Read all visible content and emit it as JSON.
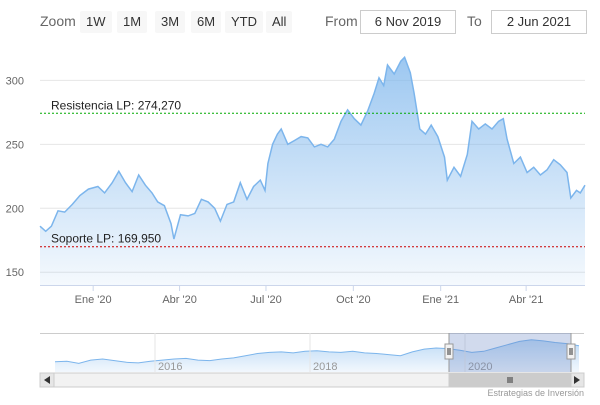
{
  "range_selector": {
    "zoom_label": "Zoom",
    "buttons": [
      "1W",
      "1M",
      "3M",
      "6M",
      "YTD",
      "All"
    ],
    "from_label": "From",
    "from_value": "6 Nov 2019",
    "to_label": "To",
    "to_value": "2 Jun 2021"
  },
  "chart_data": {
    "type": "area",
    "title": "",
    "xlabel": "",
    "ylabel": "",
    "x_range": [
      "2019-11-06",
      "2021-06-02"
    ],
    "ylim": [
      140,
      330
    ],
    "y_ticks": [
      150,
      200,
      250,
      300
    ],
    "x_tick_labels": [
      {
        "date": "2020-01-01",
        "label": "Ene '20"
      },
      {
        "date": "2020-04-01",
        "label": "Abr '20"
      },
      {
        "date": "2020-07-01",
        "label": "Jul '20"
      },
      {
        "date": "2020-10-01",
        "label": "Oct '20"
      },
      {
        "date": "2021-01-01",
        "label": "Ene '21"
      },
      {
        "date": "2021-04-01",
        "label": "Abr '21"
      }
    ],
    "grid": "horizontal",
    "series": [
      {
        "color": "#7cb5ec",
        "points": [
          [
            "2019-11-06",
            186
          ],
          [
            "2019-11-12",
            182
          ],
          [
            "2019-11-18",
            186
          ],
          [
            "2019-11-25",
            198
          ],
          [
            "2019-12-02",
            197
          ],
          [
            "2019-12-10",
            203
          ],
          [
            "2019-12-18",
            210
          ],
          [
            "2019-12-27",
            215
          ],
          [
            "2020-01-06",
            217
          ],
          [
            "2020-01-13",
            212
          ],
          [
            "2020-01-21",
            220
          ],
          [
            "2020-01-28",
            229
          ],
          [
            "2020-02-04",
            220
          ],
          [
            "2020-02-11",
            213
          ],
          [
            "2020-02-18",
            226
          ],
          [
            "2020-02-25",
            218
          ],
          [
            "2020-03-03",
            212
          ],
          [
            "2020-03-09",
            205
          ],
          [
            "2020-03-16",
            202
          ],
          [
            "2020-03-23",
            188
          ],
          [
            "2020-03-26",
            176
          ],
          [
            "2020-04-02",
            195
          ],
          [
            "2020-04-10",
            194
          ],
          [
            "2020-04-17",
            196
          ],
          [
            "2020-04-24",
            207
          ],
          [
            "2020-05-01",
            205
          ],
          [
            "2020-05-08",
            200
          ],
          [
            "2020-05-14",
            190
          ],
          [
            "2020-05-21",
            203
          ],
          [
            "2020-05-28",
            205
          ],
          [
            "2020-06-04",
            220
          ],
          [
            "2020-06-11",
            207
          ],
          [
            "2020-06-18",
            217
          ],
          [
            "2020-06-25",
            222
          ],
          [
            "2020-06-30",
            214
          ],
          [
            "2020-07-03",
            235
          ],
          [
            "2020-07-08",
            250
          ],
          [
            "2020-07-13",
            258
          ],
          [
            "2020-07-17",
            262
          ],
          [
            "2020-07-24",
            250
          ],
          [
            "2020-07-31",
            253
          ],
          [
            "2020-08-07",
            256
          ],
          [
            "2020-08-14",
            255
          ],
          [
            "2020-08-21",
            248
          ],
          [
            "2020-08-28",
            250
          ],
          [
            "2020-09-04",
            248
          ],
          [
            "2020-09-11",
            254
          ],
          [
            "2020-09-18",
            268
          ],
          [
            "2020-09-25",
            277
          ],
          [
            "2020-10-02",
            270
          ],
          [
            "2020-10-09",
            265
          ],
          [
            "2020-10-16",
            276
          ],
          [
            "2020-10-23",
            290
          ],
          [
            "2020-10-28",
            302
          ],
          [
            "2020-11-02",
            296
          ],
          [
            "2020-11-06",
            312
          ],
          [
            "2020-11-13",
            305
          ],
          [
            "2020-11-20",
            315
          ],
          [
            "2020-11-24",
            318
          ],
          [
            "2020-11-30",
            306
          ],
          [
            "2020-12-04",
            290
          ],
          [
            "2020-12-10",
            262
          ],
          [
            "2020-12-16",
            258
          ],
          [
            "2020-12-22",
            265
          ],
          [
            "2020-12-29",
            256
          ],
          [
            "2021-01-05",
            240
          ],
          [
            "2021-01-08",
            222
          ],
          [
            "2021-01-15",
            232
          ],
          [
            "2021-01-22",
            225
          ],
          [
            "2021-01-29",
            242
          ],
          [
            "2021-02-03",
            268
          ],
          [
            "2021-02-10",
            262
          ],
          [
            "2021-02-17",
            266
          ],
          [
            "2021-02-24",
            262
          ],
          [
            "2021-03-03",
            268
          ],
          [
            "2021-03-08",
            270
          ],
          [
            "2021-03-12",
            254
          ],
          [
            "2021-03-19",
            235
          ],
          [
            "2021-03-26",
            240
          ],
          [
            "2021-04-02",
            228
          ],
          [
            "2021-04-09",
            232
          ],
          [
            "2021-04-16",
            226
          ],
          [
            "2021-04-23",
            230
          ],
          [
            "2021-04-30",
            238
          ],
          [
            "2021-05-07",
            234
          ],
          [
            "2021-05-14",
            228
          ],
          [
            "2021-05-18",
            208
          ],
          [
            "2021-05-24",
            214
          ],
          [
            "2021-05-28",
            212
          ],
          [
            "2021-06-02",
            218
          ]
        ]
      }
    ],
    "plot_lines": [
      {
        "value": 274.27,
        "label": "Resistencia LP: 274,270",
        "color": "#00aa00"
      },
      {
        "value": 169.95,
        "label": "Soporte LP: 169,950",
        "color": "#cc0000"
      }
    ],
    "navigator": {
      "year_labels": [
        "2016",
        "2018",
        "2020"
      ],
      "series": [
        55,
        56,
        52,
        58,
        60,
        57,
        54,
        53,
        56,
        58,
        60,
        61,
        58,
        57,
        60,
        62,
        66,
        70,
        72,
        73,
        71,
        74,
        75,
        73,
        72,
        74,
        71,
        70,
        68,
        66,
        73,
        78,
        80,
        79,
        76,
        72,
        74,
        80,
        86,
        92,
        95,
        93,
        90,
        88,
        84
      ]
    }
  },
  "credits": "Estrategias de Inversión"
}
